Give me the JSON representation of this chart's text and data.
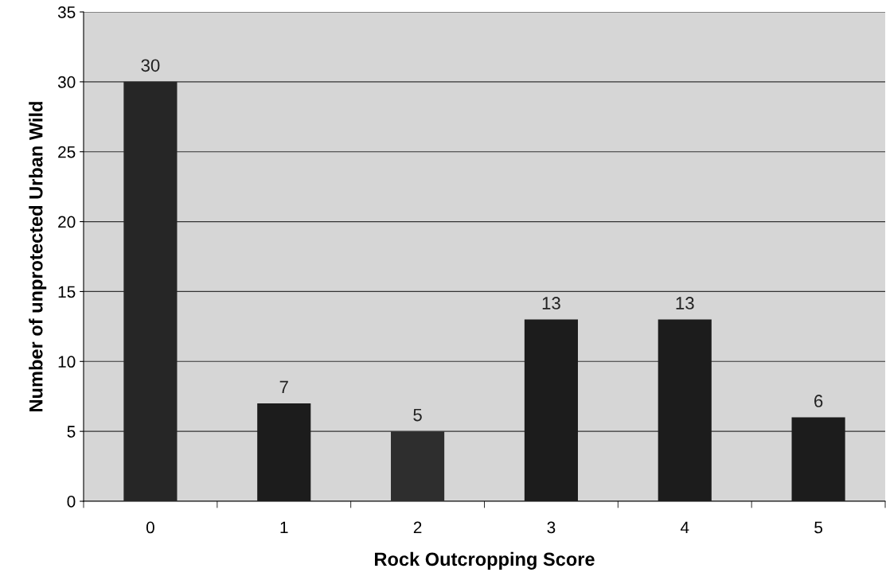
{
  "chart_data": {
    "type": "bar",
    "xlabel": "Rock Outcropping Score",
    "ylabel": "Number of unprotected Urban Wild",
    "categories": [
      "0",
      "1",
      "2",
      "3",
      "4",
      "5"
    ],
    "values": [
      30,
      7,
      5,
      13,
      13,
      6
    ],
    "colors": [
      "#262626",
      "#1c1c1c",
      "#2e2e2e",
      "#1c1c1c",
      "#1c1c1c",
      "#1c1c1c"
    ],
    "ylim": [
      0,
      35
    ],
    "yticks": [
      0,
      5,
      10,
      15,
      20,
      25,
      30,
      35
    ],
    "grid": "y",
    "data_labels": true
  }
}
